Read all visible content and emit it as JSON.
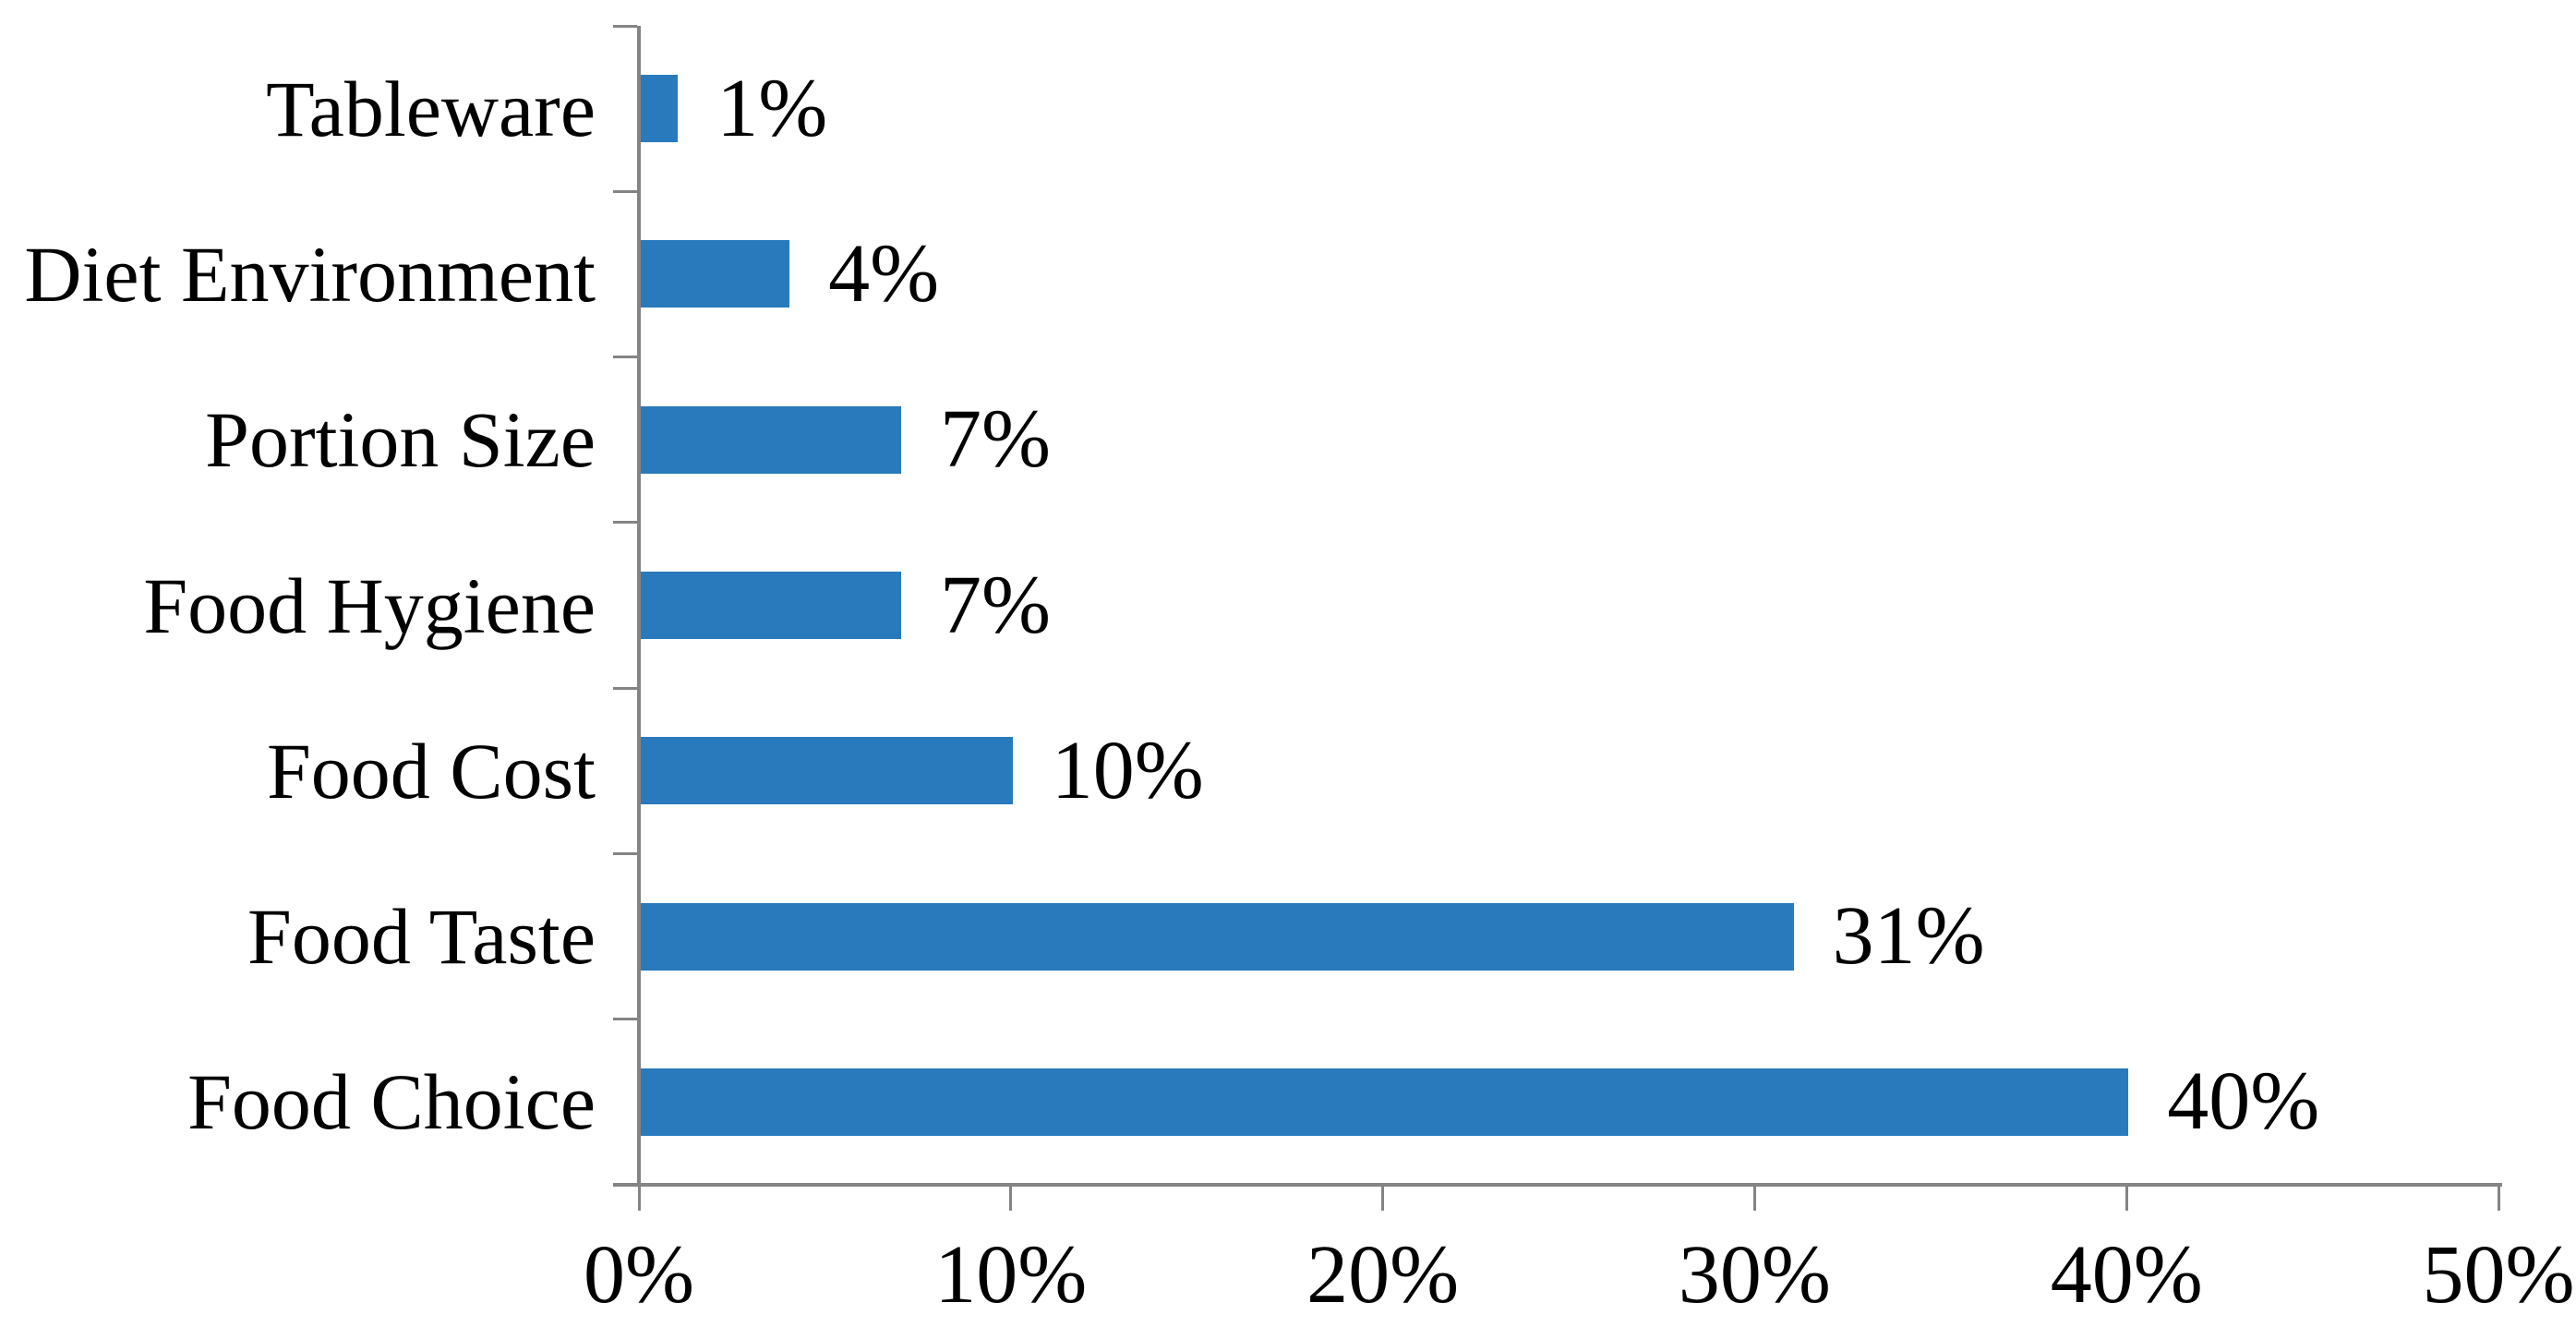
{
  "chart_data": {
    "type": "bar",
    "orientation": "horizontal",
    "title": "",
    "xlabel": "",
    "ylabel": "",
    "grid": false,
    "legend": false,
    "categories": [
      "Tableware",
      "Diet Environment",
      "Portion Size",
      "Food Hygiene",
      "Food Cost",
      "Food Taste",
      "Food Choice"
    ],
    "values": [
      1,
      4,
      7,
      7,
      10,
      31,
      40
    ],
    "value_labels": [
      "1%",
      "4%",
      "7%",
      "7%",
      "10%",
      "31%",
      "40%"
    ],
    "x_tick_labels": [
      "0%",
      "10%",
      "20%",
      "30%",
      "40%",
      "50%"
    ],
    "x_tick_values": [
      0,
      10,
      20,
      30,
      40,
      50
    ],
    "xlim": [
      0,
      50
    ],
    "bar_color": "#287ABD",
    "axis_color": "#848484",
    "text_color": "#000000"
  }
}
